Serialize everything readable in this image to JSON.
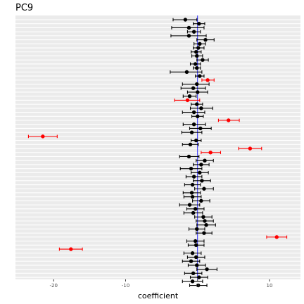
{
  "chart_data": {
    "type": "scatter",
    "title": "PC9",
    "xlabel": "coefficient",
    "ylabel": "",
    "xlim": [
      -25.3,
      14.3
    ],
    "x_ticks": [
      -20,
      -10,
      0,
      10
    ],
    "x_tick_labels": [
      "-20",
      "-10",
      "0",
      "10"
    ],
    "zero_line": 0,
    "grid": true,
    "colors": {
      "normal": "#000000",
      "highlight": "#ff0000",
      "zero_line": "#0000ff",
      "panel": "#ebebeb",
      "grid": "#ffffff"
    },
    "points": [
      {
        "value": -1.7,
        "lower": -3.4,
        "upper": -0.1,
        "highlight": false
      },
      {
        "value": 0.2,
        "lower": -0.6,
        "upper": 1.0,
        "highlight": false
      },
      {
        "value": -1.2,
        "lower": -3.6,
        "upper": 0.9,
        "highlight": false
      },
      {
        "value": -0.5,
        "lower": -1.4,
        "upper": 0.4,
        "highlight": false
      },
      {
        "value": -1.2,
        "lower": -3.7,
        "upper": 1.2,
        "highlight": false
      },
      {
        "value": 1.1,
        "lower": -0.1,
        "upper": 2.3,
        "highlight": false
      },
      {
        "value": 0.3,
        "lower": -0.5,
        "upper": 1.1,
        "highlight": false
      },
      {
        "value": 0.1,
        "lower": -0.6,
        "upper": 0.9,
        "highlight": false
      },
      {
        "value": -0.2,
        "lower": -0.9,
        "upper": 0.5,
        "highlight": false
      },
      {
        "value": -0.1,
        "lower": -0.8,
        "upper": 0.7,
        "highlight": false
      },
      {
        "value": 0.7,
        "lower": -0.1,
        "upper": 1.5,
        "highlight": false
      },
      {
        "value": -0.3,
        "lower": -1.0,
        "upper": 0.4,
        "highlight": false
      },
      {
        "value": -0.1,
        "lower": -0.6,
        "upper": 0.4,
        "highlight": false
      },
      {
        "value": -1.5,
        "lower": -3.8,
        "upper": 0.6,
        "highlight": false
      },
      {
        "value": 0.3,
        "lower": -0.3,
        "upper": 0.9,
        "highlight": false
      },
      {
        "value": 1.4,
        "lower": 0.6,
        "upper": 2.3,
        "highlight": true
      },
      {
        "value": -0.1,
        "lower": -2.1,
        "upper": 1.6,
        "highlight": false
      },
      {
        "value": -0.6,
        "lower": -2.3,
        "upper": 1.1,
        "highlight": false
      },
      {
        "value": 0.0,
        "lower": -1.4,
        "upper": 1.4,
        "highlight": false
      },
      {
        "value": -1.1,
        "lower": -2.0,
        "upper": -0.2,
        "highlight": false
      },
      {
        "value": -1.4,
        "lower": -3.2,
        "upper": 0.3,
        "highlight": true
      },
      {
        "value": -0.1,
        "lower": -0.9,
        "upper": 0.7,
        "highlight": false
      },
      {
        "value": 0.5,
        "lower": -1.0,
        "upper": 2.1,
        "highlight": false
      },
      {
        "value": -0.5,
        "lower": -2.1,
        "upper": 1.0,
        "highlight": false
      },
      {
        "value": 0.0,
        "lower": -0.8,
        "upper": 0.8,
        "highlight": false
      },
      {
        "value": 4.3,
        "lower": 2.9,
        "upper": 5.8,
        "highlight": true
      },
      {
        "value": -0.5,
        "lower": -2.0,
        "upper": 1.1,
        "highlight": false
      },
      {
        "value": 0.4,
        "lower": -1.1,
        "upper": 1.9,
        "highlight": false
      },
      {
        "value": -0.8,
        "lower": -2.2,
        "upper": 0.6,
        "highlight": false
      },
      {
        "value": -21.5,
        "lower": -23.5,
        "upper": -19.5,
        "highlight": true
      },
      {
        "value": -0.2,
        "lower": -0.9,
        "upper": 0.5,
        "highlight": false
      },
      {
        "value": -1.0,
        "lower": -2.1,
        "upper": 0.1,
        "highlight": false
      },
      {
        "value": 7.3,
        "lower": 5.7,
        "upper": 8.9,
        "highlight": true
      },
      {
        "value": 1.8,
        "lower": 0.5,
        "upper": 3.2,
        "highlight": true
      },
      {
        "value": -1.2,
        "lower": -2.5,
        "upper": 0.2,
        "highlight": false
      },
      {
        "value": 1.0,
        "lower": -0.2,
        "upper": 2.2,
        "highlight": false
      },
      {
        "value": 0.5,
        "lower": -0.6,
        "upper": 1.6,
        "highlight": false
      },
      {
        "value": -0.9,
        "lower": -2.4,
        "upper": 0.6,
        "highlight": false
      },
      {
        "value": 0.3,
        "lower": -0.9,
        "upper": 1.5,
        "highlight": false
      },
      {
        "value": -0.5,
        "lower": -1.6,
        "upper": 0.6,
        "highlight": false
      },
      {
        "value": 0.6,
        "lower": -0.6,
        "upper": 1.8,
        "highlight": false
      },
      {
        "value": -0.7,
        "lower": -1.8,
        "upper": 0.4,
        "highlight": false
      },
      {
        "value": 0.9,
        "lower": -0.4,
        "upper": 2.2,
        "highlight": false
      },
      {
        "value": -0.8,
        "lower": -2.0,
        "upper": 0.4,
        "highlight": false
      },
      {
        "value": -0.7,
        "lower": -1.9,
        "upper": 0.5,
        "highlight": false
      },
      {
        "value": 0.5,
        "lower": -0.7,
        "upper": 1.7,
        "highlight": false
      },
      {
        "value": -1.1,
        "lower": -2.5,
        "upper": 0.3,
        "highlight": false
      },
      {
        "value": -0.3,
        "lower": -1.5,
        "upper": 0.9,
        "highlight": false
      },
      {
        "value": -0.6,
        "lower": -1.9,
        "upper": 0.7,
        "highlight": false
      },
      {
        "value": 0.8,
        "lower": -0.4,
        "upper": 2.0,
        "highlight": false
      },
      {
        "value": 1.0,
        "lower": -0.2,
        "upper": 2.2,
        "highlight": false
      },
      {
        "value": 1.2,
        "lower": -0.1,
        "upper": 2.5,
        "highlight": false
      },
      {
        "value": -0.1,
        "lower": -1.2,
        "upper": 1.0,
        "highlight": false
      },
      {
        "value": 0.9,
        "lower": -0.2,
        "upper": 2.0,
        "highlight": false
      },
      {
        "value": 11.0,
        "lower": 9.6,
        "upper": 12.4,
        "highlight": true
      },
      {
        "value": -0.3,
        "lower": -1.5,
        "upper": 0.9,
        "highlight": false
      },
      {
        "value": -0.2,
        "lower": -1.3,
        "upper": 0.9,
        "highlight": false
      },
      {
        "value": -17.6,
        "lower": -19.2,
        "upper": -16.0,
        "highlight": true
      },
      {
        "value": -0.7,
        "lower": -1.9,
        "upper": 0.5,
        "highlight": false
      },
      {
        "value": -0.2,
        "lower": -1.4,
        "upper": 1.0,
        "highlight": false
      },
      {
        "value": -0.9,
        "lower": -2.1,
        "upper": 0.3,
        "highlight": false
      },
      {
        "value": -0.1,
        "lower": -1.3,
        "upper": 1.1,
        "highlight": false
      },
      {
        "value": 1.3,
        "lower": -0.1,
        "upper": 2.7,
        "highlight": false
      },
      {
        "value": -0.6,
        "lower": -1.8,
        "upper": 0.6,
        "highlight": false
      },
      {
        "value": 0.2,
        "lower": -1.0,
        "upper": 1.4,
        "highlight": false
      },
      {
        "value": -0.7,
        "lower": -2.1,
        "upper": 0.7,
        "highlight": false
      },
      {
        "value": 0.1,
        "lower": -1.1,
        "upper": 1.3,
        "highlight": false
      }
    ]
  }
}
